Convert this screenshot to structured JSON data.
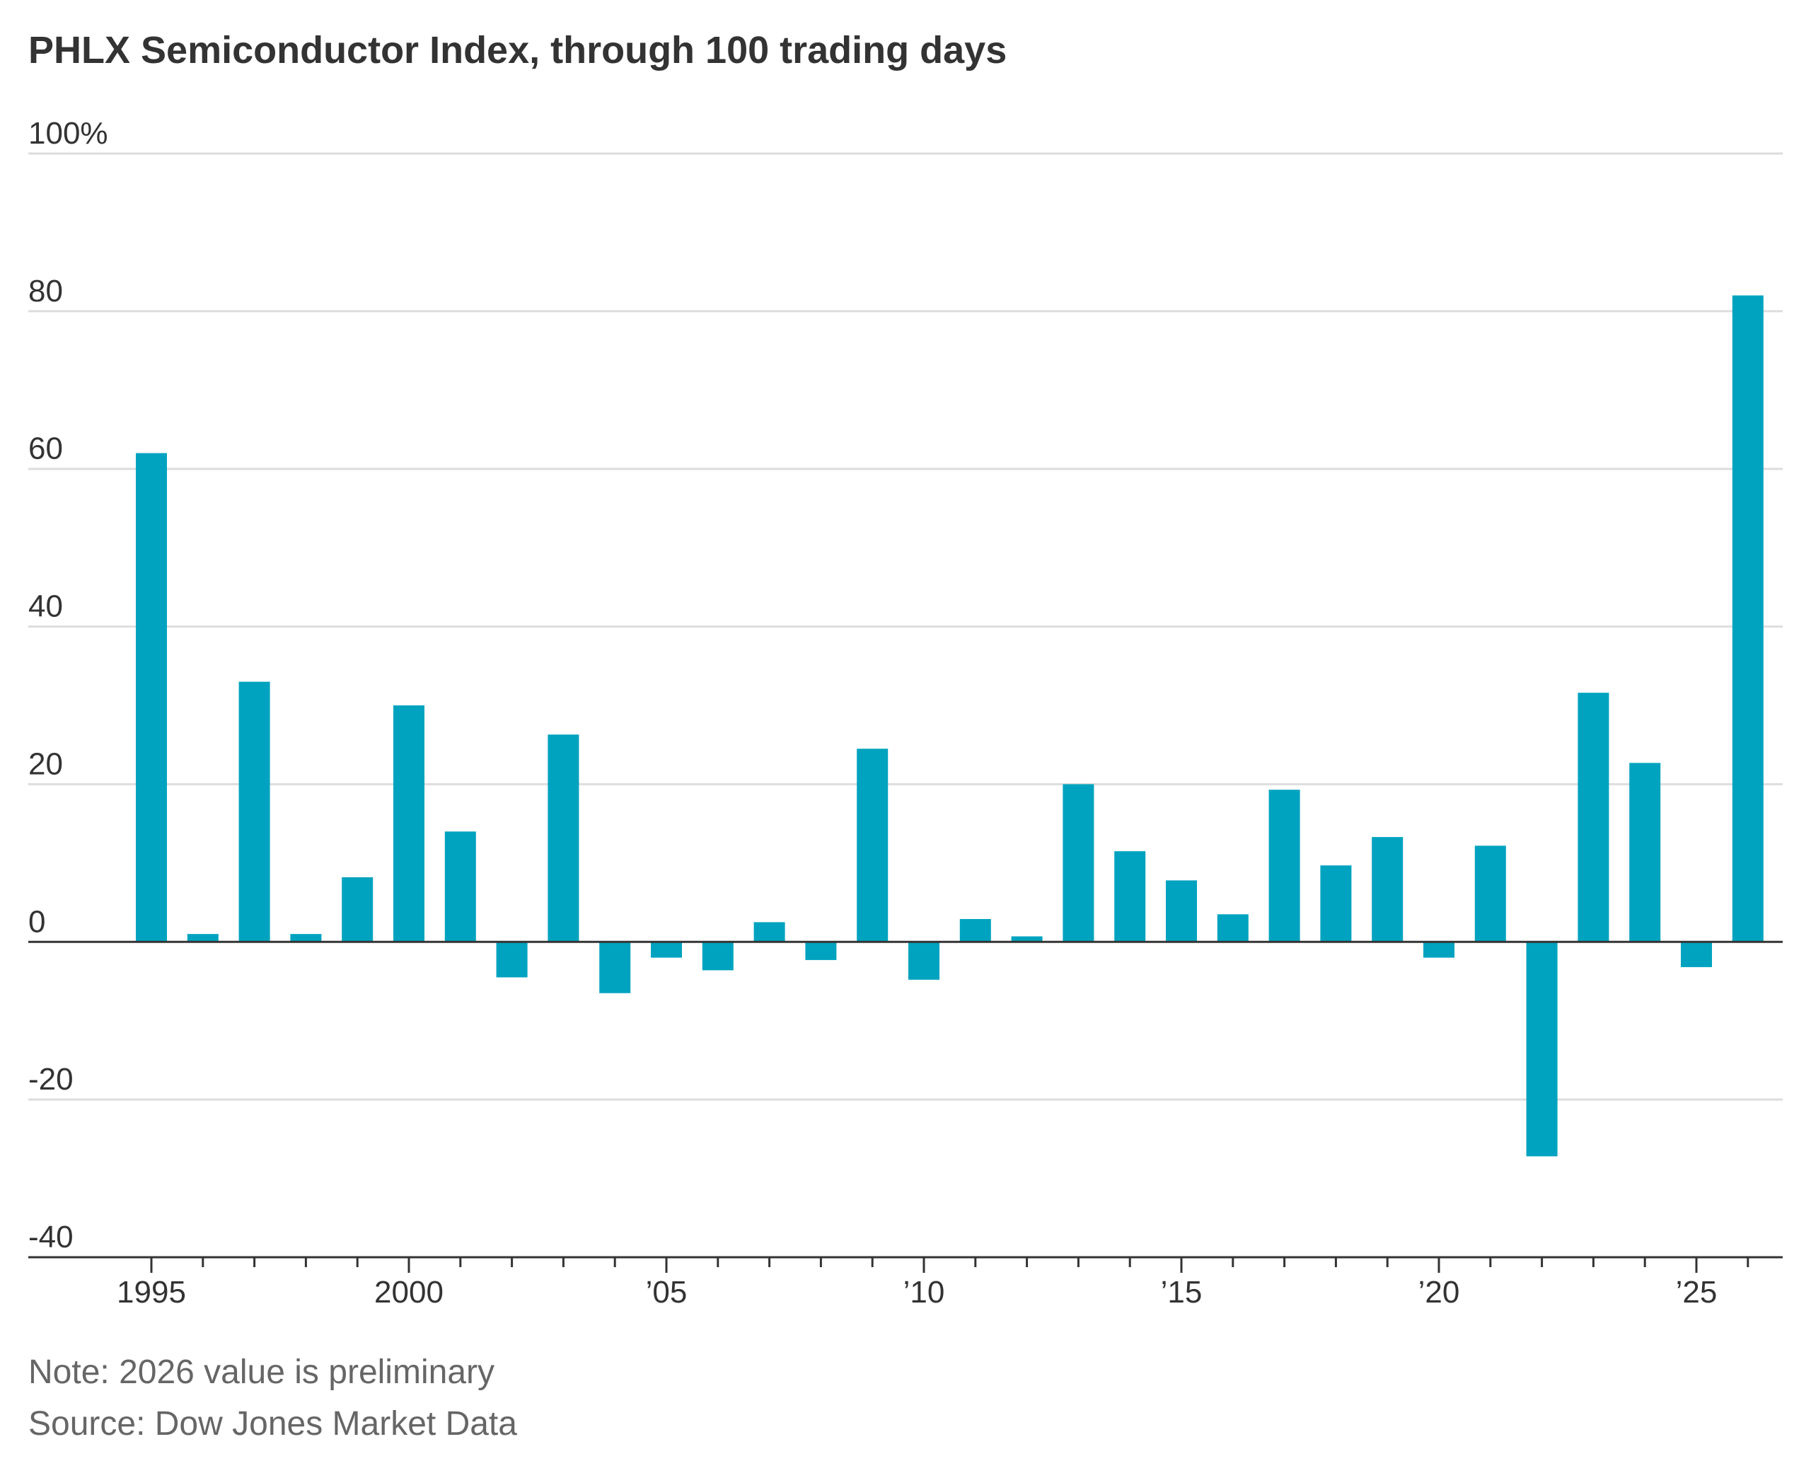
{
  "chart_data": {
    "type": "bar",
    "title": "PHLX Semiconductor Index, through 100 trading days",
    "xlabel": "",
    "ylabel": "",
    "ylim": [
      -40,
      100
    ],
    "yticks": [
      {
        "value": 100,
        "label": "100%"
      },
      {
        "value": 80,
        "label": "80"
      },
      {
        "value": 60,
        "label": "60"
      },
      {
        "value": 40,
        "label": "40"
      },
      {
        "value": 20,
        "label": "20"
      },
      {
        "value": 0,
        "label": "0"
      },
      {
        "value": -20,
        "label": "-20"
      },
      {
        "value": -40,
        "label": "-40"
      }
    ],
    "xticks": [
      {
        "year": 1995,
        "label": "1995"
      },
      {
        "year": 2000,
        "label": "2000"
      },
      {
        "year": 2005,
        "label": "’05"
      },
      {
        "year": 2010,
        "label": "’10"
      },
      {
        "year": 2015,
        "label": "’15"
      },
      {
        "year": 2020,
        "label": "’20"
      },
      {
        "year": 2025,
        "label": "’25"
      }
    ],
    "grid": true,
    "color": "#00a3bf",
    "categories": [
      1995,
      1996,
      1997,
      1998,
      1999,
      2000,
      2001,
      2002,
      2003,
      2004,
      2005,
      2006,
      2007,
      2008,
      2009,
      2010,
      2011,
      2012,
      2013,
      2014,
      2015,
      2016,
      2017,
      2018,
      2019,
      2020,
      2021,
      2022,
      2023,
      2024,
      2025,
      2026
    ],
    "values": [
      62,
      1,
      33,
      1,
      8.2,
      30,
      14,
      -4.5,
      26.3,
      -6.5,
      -2,
      -3.6,
      2.5,
      -2.3,
      24.5,
      -4.8,
      2.9,
      0.7,
      20,
      11.5,
      7.8,
      3.5,
      19.3,
      9.7,
      13.3,
      -2,
      12.2,
      -27.2,
      31.6,
      22.7,
      -3.2,
      82
    ]
  },
  "notes": {
    "note": "Note: 2026 value is preliminary",
    "source": "Source: Dow Jones Market Data"
  }
}
